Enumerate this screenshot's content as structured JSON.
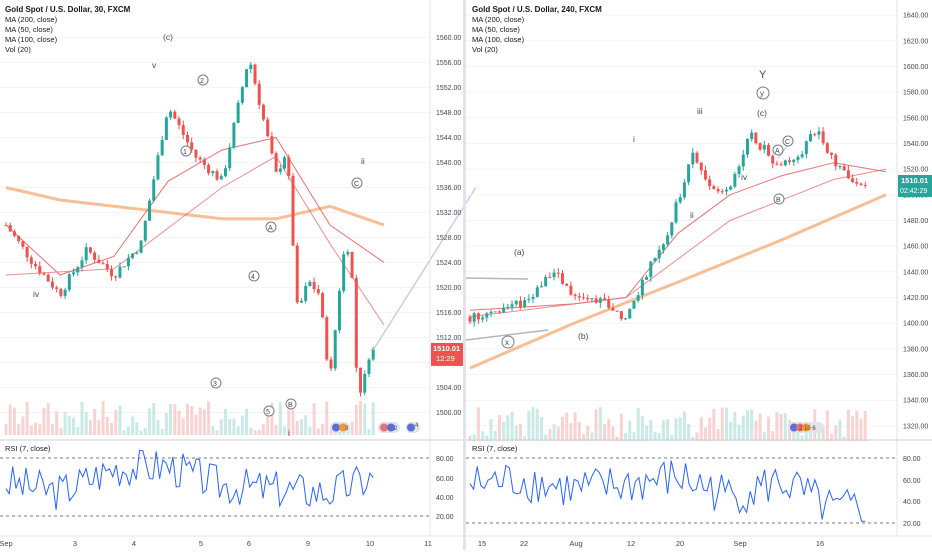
{
  "charts": [
    {
      "id": "left",
      "header": {
        "title": "Gold Spot / U.S. Dollar, 30, FXCM",
        "indicators": [
          "MA (200, close)",
          "MA (50, close)",
          "MA (100, close)",
          "Vol (20)"
        ]
      },
      "price_axis": {
        "ticks": [
          "1560.00",
          "1556.00",
          "1552.00",
          "1548.00",
          "1544.00",
          "1540.00",
          "1536.00",
          "1532.00",
          "1528.00",
          "1524.00",
          "1520.00",
          "1516.00",
          "1512.00",
          "1508.00",
          "1504.00",
          "1500.00"
        ],
        "range": [
          1498,
          1562
        ]
      },
      "price_label": {
        "value": "1510.01",
        "countdown": "12:29",
        "price": 1510.01
      },
      "x_axis": {
        "labels": [
          "Sep",
          "3",
          "4",
          "5",
          "6",
          "9",
          "10",
          "11"
        ]
      },
      "rsi": {
        "title": "RSI (7, close)",
        "ticks": [
          "80.00",
          "60.00",
          "40.00",
          "20.00"
        ],
        "levels": [
          80,
          20
        ]
      },
      "wave_labels": [
        "(c)",
        "v",
        "2",
        "1",
        "iv",
        "A",
        "4",
        "3",
        "5",
        "B",
        "C",
        "ii",
        "i"
      ],
      "overlay_icons": {
        "badge_a": "3",
        "badge_b": "2",
        "badge_c": "4"
      },
      "chart_data": {
        "type": "line",
        "x_labels": [
          "Sep",
          "3",
          "4",
          "5",
          "6",
          "9",
          "10",
          "11"
        ],
        "y_range": [
          1498,
          1562
        ],
        "series": [
          {
            "role": "price",
            "color": "#26a69a",
            "x": [
              0,
              0.5,
              1,
              1.5,
              2,
              2.5,
              3,
              3.5,
              4,
              4.5,
              5,
              5.2,
              5.4,
              5.6,
              5.8,
              6,
              6.2,
              6.3,
              6.4,
              6.5,
              6.6,
              6.7,
              6.8
            ],
            "y": [
              1530,
              1524,
              1519,
              1526,
              1522,
              1527,
              1549,
              1541,
              1537,
              1557,
              1538,
              1542,
              1516,
              1521,
              1519,
              1505,
              1522,
              1528,
              1523,
              1505,
              1503,
              1509,
              1510
            ]
          },
          {
            "role": "ma200",
            "color": "#f5b88a",
            "x": [
              0,
              1,
              2,
              3,
              4,
              5,
              6,
              7
            ],
            "y": [
              1536,
              1534,
              1533,
              1532,
              1531,
              1531,
              1533,
              1530
            ]
          },
          {
            "role": "ma50",
            "color": "#e57373",
            "x": [
              0,
              1,
              2,
              3,
              4,
              5,
              6,
              7
            ],
            "y": [
              1530,
              1522,
              1525,
              1537,
              1542,
              1544,
              1530,
              1524
            ]
          },
          {
            "role": "ma100",
            "color": "#e57373",
            "x": [
              0,
              2,
              4,
              5,
              6,
              7
            ],
            "y": [
              1522,
              1523,
              1536,
              1541,
              1527,
              1514
            ]
          },
          {
            "role": "projection",
            "color": "#c8d0dc",
            "x": [
              6.8,
              8.7
            ],
            "y": [
              1510,
              1536
            ]
          }
        ]
      },
      "rsi_data": {
        "type": "line",
        "x": [
          0,
          1,
          2,
          3,
          4,
          5,
          6,
          6.8
        ],
        "y": [
          55,
          45,
          70,
          72,
          52,
          48,
          45,
          60
        ]
      }
    },
    {
      "id": "right",
      "header": {
        "title": "Gold Spot / U.S. Dollar, 240, FXCM",
        "indicators": [
          "MA (200, close)",
          "MA (50, close)",
          "MA (100, close)",
          "Vol (20)"
        ]
      },
      "price_axis": {
        "ticks": [
          "1640.00",
          "1620.00",
          "1600.00",
          "1580.00",
          "1560.00",
          "1540.00",
          "1520.00",
          "1500.00",
          "1480.00",
          "1460.00",
          "1440.00",
          "1420.00",
          "1400.00",
          "1380.00",
          "1360.00",
          "1340.00",
          "1320.00"
        ],
        "range": [
          1316,
          1644
        ]
      },
      "price_label": {
        "value": "1510.01",
        "countdown": "02:42:29",
        "price": 1510.01
      },
      "x_axis": {
        "labels": [
          "15",
          "22",
          "Aug",
          "12",
          "20",
          "Sep",
          "16"
        ]
      },
      "rsi": {
        "title": "RSI (7, close)",
        "ticks": [
          "80.00",
          "60.00",
          "40.00",
          "20.00"
        ],
        "levels": [
          80,
          20
        ]
      },
      "wave_labels": [
        "Y",
        "y",
        "(c)",
        "iii",
        "i",
        "A",
        "C",
        "iv",
        "B",
        "ii",
        "(a)",
        "x",
        "(b)"
      ],
      "overlay_icons": {
        "badge_text": "2 10 6"
      },
      "chart_data": {
        "type": "line",
        "x_labels": [
          "15",
          "22",
          "Aug",
          "12",
          "20",
          "Sep",
          "16"
        ],
        "y_range": [
          1316,
          1644
        ],
        "series": [
          {
            "role": "price",
            "color": "#26a69a",
            "x": [
              0,
              1,
              1.6,
              2,
              2.6,
              3,
              3.4,
              3.8,
              4.3,
              4.6,
              5,
              5.4,
              5.8,
              6.2,
              6.7,
              7,
              7.3,
              7.6
            ],
            "y": [
              1405,
              1415,
              1440,
              1420,
              1415,
              1403,
              1440,
              1470,
              1533,
              1505,
              1503,
              1548,
              1528,
              1525,
              1552,
              1525,
              1512,
              1510
            ]
          },
          {
            "role": "ma200",
            "color": "#f5b88a",
            "x": [
              0,
              2,
              4,
              6,
              8
            ],
            "y": [
              1365,
              1400,
              1432,
              1465,
              1500
            ]
          },
          {
            "role": "ma50",
            "color": "#e57373",
            "x": [
              0,
              2,
              3,
              4,
              5,
              6,
              7,
              8
            ],
            "y": [
              1410,
              1415,
              1420,
              1470,
              1500,
              1515,
              1525,
              1518
            ]
          },
          {
            "role": "ma100",
            "color": "#e57373",
            "x": [
              0,
              3,
              5,
              7,
              8
            ],
            "y": [
              1405,
              1420,
              1480,
              1512,
              1520
            ]
          }
        ]
      },
      "rsi_data": {
        "type": "line",
        "x": [
          0,
          1,
          2,
          3,
          4,
          5,
          6,
          7,
          7.6
        ],
        "y": [
          55,
          60,
          50,
          55,
          62,
          45,
          58,
          30,
          35
        ]
      }
    }
  ]
}
